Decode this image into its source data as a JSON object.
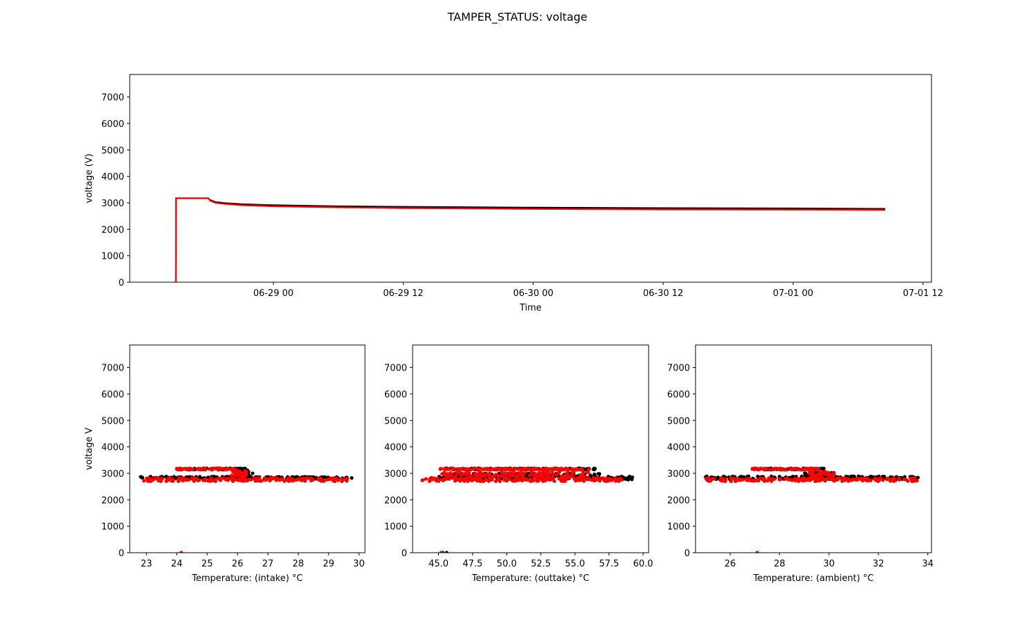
{
  "figure": {
    "title": "TAMPER_STATUS: voltage",
    "colors": {
      "primary": "#000000",
      "secondary": "#ff0000"
    }
  },
  "chart_data": [
    {
      "id": "timeseries",
      "type": "line",
      "xlabel": "Time",
      "ylabel": "voltage (V)",
      "x_axis": "datetime",
      "xlim": [
        "2022-06-28 10:44",
        "2022-07-01 12:47"
      ],
      "ylim": [
        0,
        7850
      ],
      "xticks": [
        {
          "value": "2022-06-29 00:00",
          "label": "06-29 00"
        },
        {
          "value": "2022-06-29 12:00",
          "label": "06-29 12"
        },
        {
          "value": "2022-06-30 00:00",
          "label": "06-30 00"
        },
        {
          "value": "2022-06-30 12:00",
          "label": "06-30 12"
        },
        {
          "value": "2022-07-01 00:00",
          "label": "07-01 00"
        },
        {
          "value": "2022-07-01 12:00",
          "label": "07-01 12"
        }
      ],
      "yticks": [
        0,
        1000,
        2000,
        3000,
        4000,
        5000,
        6000,
        7000
      ],
      "series": [
        {
          "color": "#000000",
          "x": [
            "2022-06-28 15:00",
            "2022-06-28 15:01",
            "2022-06-28 18:00",
            "2022-06-28 18:10",
            "2022-06-28 18:40",
            "2022-06-28 19:30",
            "2022-06-28 21:00",
            "2022-06-29 00:00",
            "2022-06-29 06:00",
            "2022-06-29 12:00",
            "2022-06-30 00:00",
            "2022-06-30 12:00",
            "2022-07-01 00:00",
            "2022-07-01 08:30"
          ],
          "y": [
            0,
            3170,
            3170,
            3100,
            3030,
            2990,
            2950,
            2910,
            2870,
            2850,
            2820,
            2800,
            2790,
            2775
          ]
        },
        {
          "color": "#ff0000",
          "x": [
            "2022-06-28 15:00",
            "2022-06-28 15:01",
            "2022-06-28 18:00",
            "2022-06-28 18:10",
            "2022-06-28 18:40",
            "2022-06-28 19:30",
            "2022-06-28 21:00",
            "2022-06-29 00:00",
            "2022-06-29 06:00",
            "2022-06-29 12:00",
            "2022-06-30 00:00",
            "2022-06-30 12:00",
            "2022-07-01 00:00",
            "2022-07-01 08:30"
          ],
          "y": [
            0,
            3170,
            3170,
            3080,
            3000,
            2960,
            2910,
            2870,
            2830,
            2800,
            2770,
            2750,
            2740,
            2730
          ]
        }
      ]
    },
    {
      "id": "intake",
      "type": "scatter",
      "xlabel": "Temperature: (intake) °C",
      "ylabel": "voltage V",
      "xlim": [
        22.45,
        30.2
      ],
      "ylim": [
        0,
        7850
      ],
      "xticks": [
        23,
        24,
        25,
        26,
        27,
        28,
        29,
        30
      ],
      "yticks": [
        0,
        1000,
        2000,
        3000,
        4000,
        5000,
        6000,
        7000
      ],
      "series": [
        {
          "color": "#000000",
          "bands": [
            {
              "x": [
                22.8,
                29.8
              ],
              "y": [
                2790,
                2880
              ]
            },
            {
              "x": [
                24.4,
                26.3
              ],
              "y": [
                3140,
                3190
              ]
            },
            {
              "x": [
                25.9,
                26.4
              ],
              "y": [
                2880,
                3120
              ]
            }
          ],
          "points": [
            [
              24.15,
              0
            ],
            [
              26.5,
              3000
            ]
          ]
        },
        {
          "color": "#ff0000",
          "bands": [
            {
              "x": [
                22.9,
                29.7
              ],
              "y": [
                2700,
                2820
              ]
            },
            {
              "x": [
                24.0,
                26.0
              ],
              "y": [
                3130,
                3190
              ]
            },
            {
              "x": [
                25.8,
                26.3
              ],
              "y": [
                2850,
                3100
              ]
            }
          ],
          "points": [
            [
              24.15,
              0
            ],
            [
              24.0,
              3170
            ]
          ]
        }
      ]
    },
    {
      "id": "outtake",
      "type": "scatter",
      "xlabel": "Temperature: (outtake) °C",
      "ylabel": "",
      "xlim": [
        43.1,
        60.4
      ],
      "ylim": [
        0,
        7850
      ],
      "xticks": [
        45.0,
        47.5,
        50.0,
        52.5,
        55.0,
        57.5,
        60.0
      ],
      "xtick_labels": [
        "45.0",
        "47.5",
        "50.0",
        "52.5",
        "55.0",
        "57.5",
        "60.0"
      ],
      "yticks": [
        0,
        1000,
        2000,
        3000,
        4000,
        5000,
        6000,
        7000
      ],
      "series": [
        {
          "color": "#000000",
          "bands": [
            {
              "x": [
                45.0,
                59.3
              ],
              "y": [
                2760,
                2880
              ]
            },
            {
              "x": [
                46.0,
                56.8
              ],
              "y": [
                2880,
                3000
              ]
            },
            {
              "x": [
                45.5,
                56.5
              ],
              "y": [
                3140,
                3190
              ]
            }
          ],
          "points": [
            [
              45.3,
              0
            ],
            [
              45.6,
              0
            ]
          ]
        },
        {
          "color": "#ff0000",
          "bands": [
            {
              "x": [
                43.8,
                58.5
              ],
              "y": [
                2700,
                2830
              ]
            },
            {
              "x": [
                45.0,
                56.0
              ],
              "y": [
                2850,
                3050
              ]
            },
            {
              "x": [
                45.0,
                56.3
              ],
              "y": [
                3130,
                3180
              ]
            }
          ],
          "points": [
            [
              45.2,
              0
            ]
          ]
        }
      ]
    },
    {
      "id": "ambient",
      "type": "scatter",
      "xlabel": "Temperature: (ambient) °C",
      "ylabel": "",
      "xlim": [
        24.6,
        34.15
      ],
      "ylim": [
        0,
        7850
      ],
      "xticks": [
        26,
        28,
        30,
        32,
        34
      ],
      "yticks": [
        0,
        1000,
        2000,
        3000,
        4000,
        5000,
        6000,
        7000
      ],
      "series": [
        {
          "color": "#000000",
          "bands": [
            {
              "x": [
                25.0,
                33.6
              ],
              "y": [
                2780,
                2890
              ]
            },
            {
              "x": [
                27.2,
                29.8
              ],
              "y": [
                3140,
                3190
              ]
            },
            {
              "x": [
                29.0,
                30.3
              ],
              "y": [
                2880,
                3050
              ]
            }
          ],
          "points": [
            [
              27.1,
              0
            ]
          ]
        },
        {
          "color": "#ff0000",
          "bands": [
            {
              "x": [
                25.0,
                33.6
              ],
              "y": [
                2700,
                2820
              ]
            },
            {
              "x": [
                26.9,
                29.6
              ],
              "y": [
                3130,
                3190
              ]
            },
            {
              "x": [
                29.2,
                30.2
              ],
              "y": [
                2820,
                3080
              ]
            }
          ],
          "points": [
            [
              27.1,
              0
            ],
            [
              26.9,
              3170
            ]
          ]
        }
      ]
    }
  ]
}
